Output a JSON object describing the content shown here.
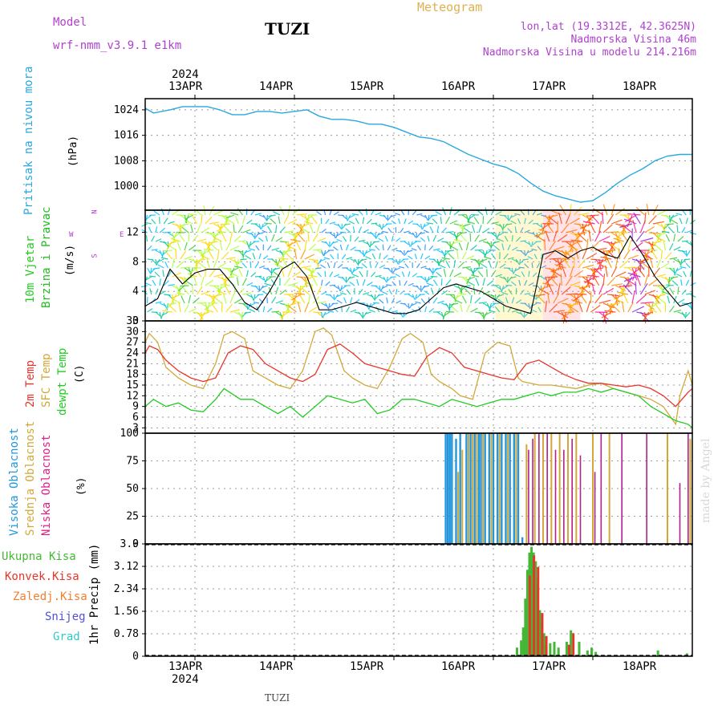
{
  "header": {
    "model_label": "Model",
    "model_name": "wrf-nmm_v3.9.1 e1km",
    "station": "TUZI",
    "meteogram": "Meteogram",
    "lonlat": "lon,lat (19.3312E, 42.3625N)",
    "altitude": "Nadmorska Visina 46m",
    "model_altitude": "Nadmorska Visina u modelu 214.216m",
    "footer_station": "TUZI",
    "watermark": "made by Angel"
  },
  "time_axis": {
    "year": "2024",
    "days": [
      "13APR",
      "14APR",
      "15APR",
      "16APR",
      "17APR",
      "18APR"
    ],
    "start_hour": 12,
    "end_hour": 144
  },
  "colors": {
    "pressure": "#29a8e0",
    "temp2m": "#e8352a",
    "sfc": "#d4a838",
    "dewpt": "#22cc22",
    "high_cloud": "#2496dc",
    "mid_cloud": "#d4a838",
    "low_cloud": "#b0228c",
    "total_rain": "#44b836",
    "conv_rain": "#e8352a",
    "frz_rain": "#f08030",
    "snow": "#5050e0",
    "hail": "#30c8c8",
    "wind_label": "#22cc22",
    "wind_label2": "#22bb22",
    "dir_label": "#b040d0",
    "grid": "#9a9a9a"
  },
  "chart_data": [
    {
      "type": "line",
      "panel": "pressure",
      "labels": [
        "Pritisak na nivou mora",
        "(hPa)"
      ],
      "yticks": [
        1000,
        1008,
        1016,
        1024
      ],
      "ylim": [
        992.5,
        1027.5
      ],
      "series": [
        {
          "x": [
            12,
            14,
            18,
            21,
            24,
            27,
            30,
            33,
            36,
            39,
            42,
            45,
            48,
            51,
            54,
            57,
            60,
            63,
            66,
            69,
            72,
            75,
            78,
            81,
            84,
            87,
            90,
            93,
            96,
            99,
            102,
            105,
            108,
            111,
            114,
            117,
            120,
            123,
            126,
            129,
            132,
            135,
            138,
            141,
            144
          ],
          "values": [
            1024.5,
            1023,
            1024,
            1025,
            1025,
            1025,
            1024,
            1022.5,
            1022.5,
            1023.5,
            1023.5,
            1023,
            1023.5,
            1024,
            1022,
            1021,
            1021,
            1020.5,
            1019.5,
            1019.5,
            1018.5,
            1017,
            1015.5,
            1015,
            1014,
            1012,
            1010,
            1008.5,
            1007,
            1006,
            1004,
            1001,
            998.5,
            997,
            996,
            995,
            995.5,
            998,
            1001,
            1003.5,
            1005.5,
            1008,
            1009.5,
            1010,
            1010
          ]
        }
      ]
    },
    {
      "type": "line",
      "panel": "wind",
      "labels": [
        "10m Vjetar",
        "Brzina i Pravac",
        "(m/s)"
      ],
      "direction_labels": [
        "N",
        "S",
        "E",
        "W"
      ],
      "yticks": [
        0,
        4,
        8,
        12
      ],
      "ylim": [
        0,
        15
      ],
      "series": [
        {
          "x": [
            12,
            15,
            18,
            21,
            24,
            27,
            30,
            33,
            36,
            39,
            42,
            45,
            48,
            51,
            54,
            57,
            60,
            63,
            66,
            69,
            72,
            75,
            78,
            81,
            84,
            87,
            90,
            93,
            96,
            99,
            102,
            105,
            108,
            111,
            114,
            117,
            120,
            123,
            126,
            129,
            132,
            135,
            138,
            141,
            144
          ],
          "values": [
            2,
            3,
            7,
            5,
            6.5,
            7,
            7,
            5,
            2.5,
            1.5,
            4,
            7,
            8,
            6,
            1.5,
            1.5,
            2,
            2.5,
            2,
            1.5,
            1,
            1,
            1.5,
            3,
            4.5,
            5,
            4.5,
            4,
            3,
            2,
            1.5,
            1,
            9,
            9.5,
            8.5,
            9.5,
            10,
            9,
            8.5,
            11.5,
            9,
            6,
            4,
            2,
            2.5
          ]
        }
      ]
    },
    {
      "type": "line",
      "panel": "temperature",
      "labels": [
        "2m Temp",
        "SFC Temp",
        "dewpt Temp",
        "(C)"
      ],
      "yticks": [
        3,
        6,
        9,
        12,
        15,
        18,
        21,
        24,
        27,
        30,
        33
      ],
      "ylim": [
        1.5,
        33
      ],
      "series": [
        {
          "name": "2m Temp",
          "x": [
            12,
            13,
            15,
            17,
            20,
            23,
            26,
            29,
            32,
            35,
            38,
            41,
            44,
            47,
            50,
            53,
            56,
            59,
            62,
            65,
            68,
            71,
            74,
            77,
            80,
            83,
            86,
            89,
            92,
            95,
            98,
            101,
            104,
            107,
            110,
            113,
            116,
            119,
            122,
            125,
            128,
            131,
            134,
            137,
            140,
            143,
            144
          ],
          "values": [
            24,
            26,
            25,
            22,
            19,
            17,
            16,
            17,
            24,
            26,
            25,
            21,
            19,
            17,
            16,
            18,
            25,
            26.5,
            24,
            21,
            20,
            19,
            18,
            17.5,
            23,
            25.5,
            24,
            20,
            19,
            18,
            17,
            16.5,
            21,
            22,
            20,
            18,
            16.5,
            15.5,
            15.5,
            15,
            14.5,
            15,
            14,
            12,
            9,
            13,
            14
          ]
        },
        {
          "name": "SFC Temp",
          "x": [
            12,
            13,
            15,
            17,
            20,
            23,
            26,
            29,
            31,
            33,
            36,
            38,
            41,
            44,
            47,
            50,
            53,
            55,
            57,
            60,
            62,
            65,
            68,
            71,
            74,
            76,
            79,
            81,
            83,
            86,
            88,
            91,
            94,
            97,
            100,
            102,
            103,
            105,
            107,
            110,
            113,
            116,
            119,
            122,
            125,
            128,
            131,
            134,
            137,
            140,
            141,
            143,
            144
          ],
          "values": [
            27,
            29.5,
            27,
            20,
            17,
            15,
            14,
            21,
            29,
            30,
            28,
            19,
            17,
            15,
            14,
            19,
            30,
            31,
            29,
            19,
            17,
            15,
            14,
            20,
            28,
            29.5,
            27,
            18,
            16,
            14,
            12,
            11,
            24,
            27,
            26,
            17,
            16,
            15.5,
            15,
            15,
            14.5,
            14,
            15,
            15.5,
            14,
            13,
            12,
            11,
            9,
            4,
            12,
            19,
            15
          ]
        },
        {
          "name": "dewpt Temp",
          "x": [
            12,
            14,
            17,
            20,
            23,
            26,
            29,
            31,
            33,
            35,
            38,
            41,
            44,
            47,
            50,
            53,
            56,
            59,
            62,
            65,
            68,
            71,
            74,
            77,
            80,
            83,
            86,
            89,
            92,
            95,
            98,
            101,
            104,
            107,
            110,
            113,
            116,
            119,
            122,
            125,
            128,
            131,
            134,
            137,
            140,
            143,
            144
          ],
          "values": [
            9,
            11,
            9,
            10,
            8,
            7.5,
            11,
            14,
            12.5,
            11,
            11,
            9,
            7,
            9,
            6,
            9,
            12,
            11,
            10,
            11,
            7,
            8,
            11,
            11,
            10,
            9,
            11,
            10,
            9,
            10,
            11,
            11,
            12,
            13,
            12,
            13,
            13,
            14,
            13,
            14,
            13,
            12,
            9,
            7,
            5,
            4,
            3
          ]
        }
      ]
    },
    {
      "type": "bar",
      "panel": "clouds",
      "labels": [
        "Visoka Oblacnost",
        "Srednja Oblacnost",
        "Niska Oblacnost",
        "(%)"
      ],
      "yticks": [
        0,
        25,
        50,
        75,
        100
      ],
      "ylim": [
        0,
        100
      ],
      "series": [
        {
          "name": "Visoka Oblacnost",
          "x": [
            84.5,
            85,
            85.5,
            86,
            87,
            88,
            89.5,
            90.5,
            91.5,
            92.5,
            93,
            94,
            95,
            96,
            97,
            98,
            99,
            100,
            101,
            102,
            103
          ],
          "values": [
            100,
            100,
            100,
            100,
            95,
            100,
            100,
            100,
            100,
            100,
            100,
            100,
            100,
            100,
            100,
            100,
            100,
            100,
            100,
            100,
            6
          ]
        },
        {
          "name": "Srednja Oblacnost",
          "x": [
            87.5,
            88.5,
            90,
            91,
            92,
            93.5,
            95.5,
            97.5,
            99.5,
            101.5,
            104,
            106,
            108,
            110,
            112,
            114,
            116,
            120,
            124,
            138,
            143.5
          ],
          "values": [
            65,
            85,
            100,
            100,
            100,
            100,
            100,
            100,
            100,
            100,
            90,
            100,
            100,
            100,
            100,
            100,
            100,
            100,
            100,
            100,
            95
          ]
        },
        {
          "name": "Niska Oblacnost",
          "x": [
            104.5,
            105.5,
            107,
            109,
            111,
            113,
            115,
            117,
            120.5,
            122,
            127,
            133,
            141,
            143
          ],
          "values": [
            85,
            95,
            100,
            100,
            85,
            85,
            95,
            80,
            65,
            100,
            100,
            100,
            55,
            100
          ]
        }
      ]
    },
    {
      "type": "bar",
      "panel": "precip",
      "labels": [
        "1hr Precip (mm)"
      ],
      "legend": [
        "Ukupna Kisa",
        "Konvek.Kisa",
        "Zaledj.Kisa",
        "Snijeg",
        "Grad"
      ],
      "yticks": [
        0,
        0.78,
        1.56,
        2.34,
        3.12,
        3.9
      ],
      "ylim": [
        0,
        3.9
      ],
      "series": [
        {
          "name": "Ukupna Kisa",
          "x": [
            102,
            103,
            103.5,
            104,
            104.5,
            105,
            105.5,
            106,
            106.5,
            107,
            107.5,
            108,
            108.5,
            109,
            110,
            111,
            112,
            114,
            115,
            117,
            119,
            120,
            121,
            136,
            143
          ],
          "values": [
            0.3,
            0.55,
            1,
            2,
            3,
            3.6,
            3.8,
            3.6,
            3.3,
            2.7,
            1.6,
            1.2,
            0.8,
            0.4,
            0.45,
            0.5,
            0.3,
            0.5,
            0.9,
            0.5,
            0.2,
            0.3,
            0.15,
            0.2,
            0.1
          ]
        },
        {
          "name": "Konvek.Kisa",
          "x": [
            104.5,
            105.5,
            106.5,
            107.5,
            108.5,
            114,
            115
          ],
          "values": [
            2.8,
            3.5,
            3.1,
            1.5,
            0.7,
            0.4,
            0.8
          ]
        }
      ]
    }
  ]
}
